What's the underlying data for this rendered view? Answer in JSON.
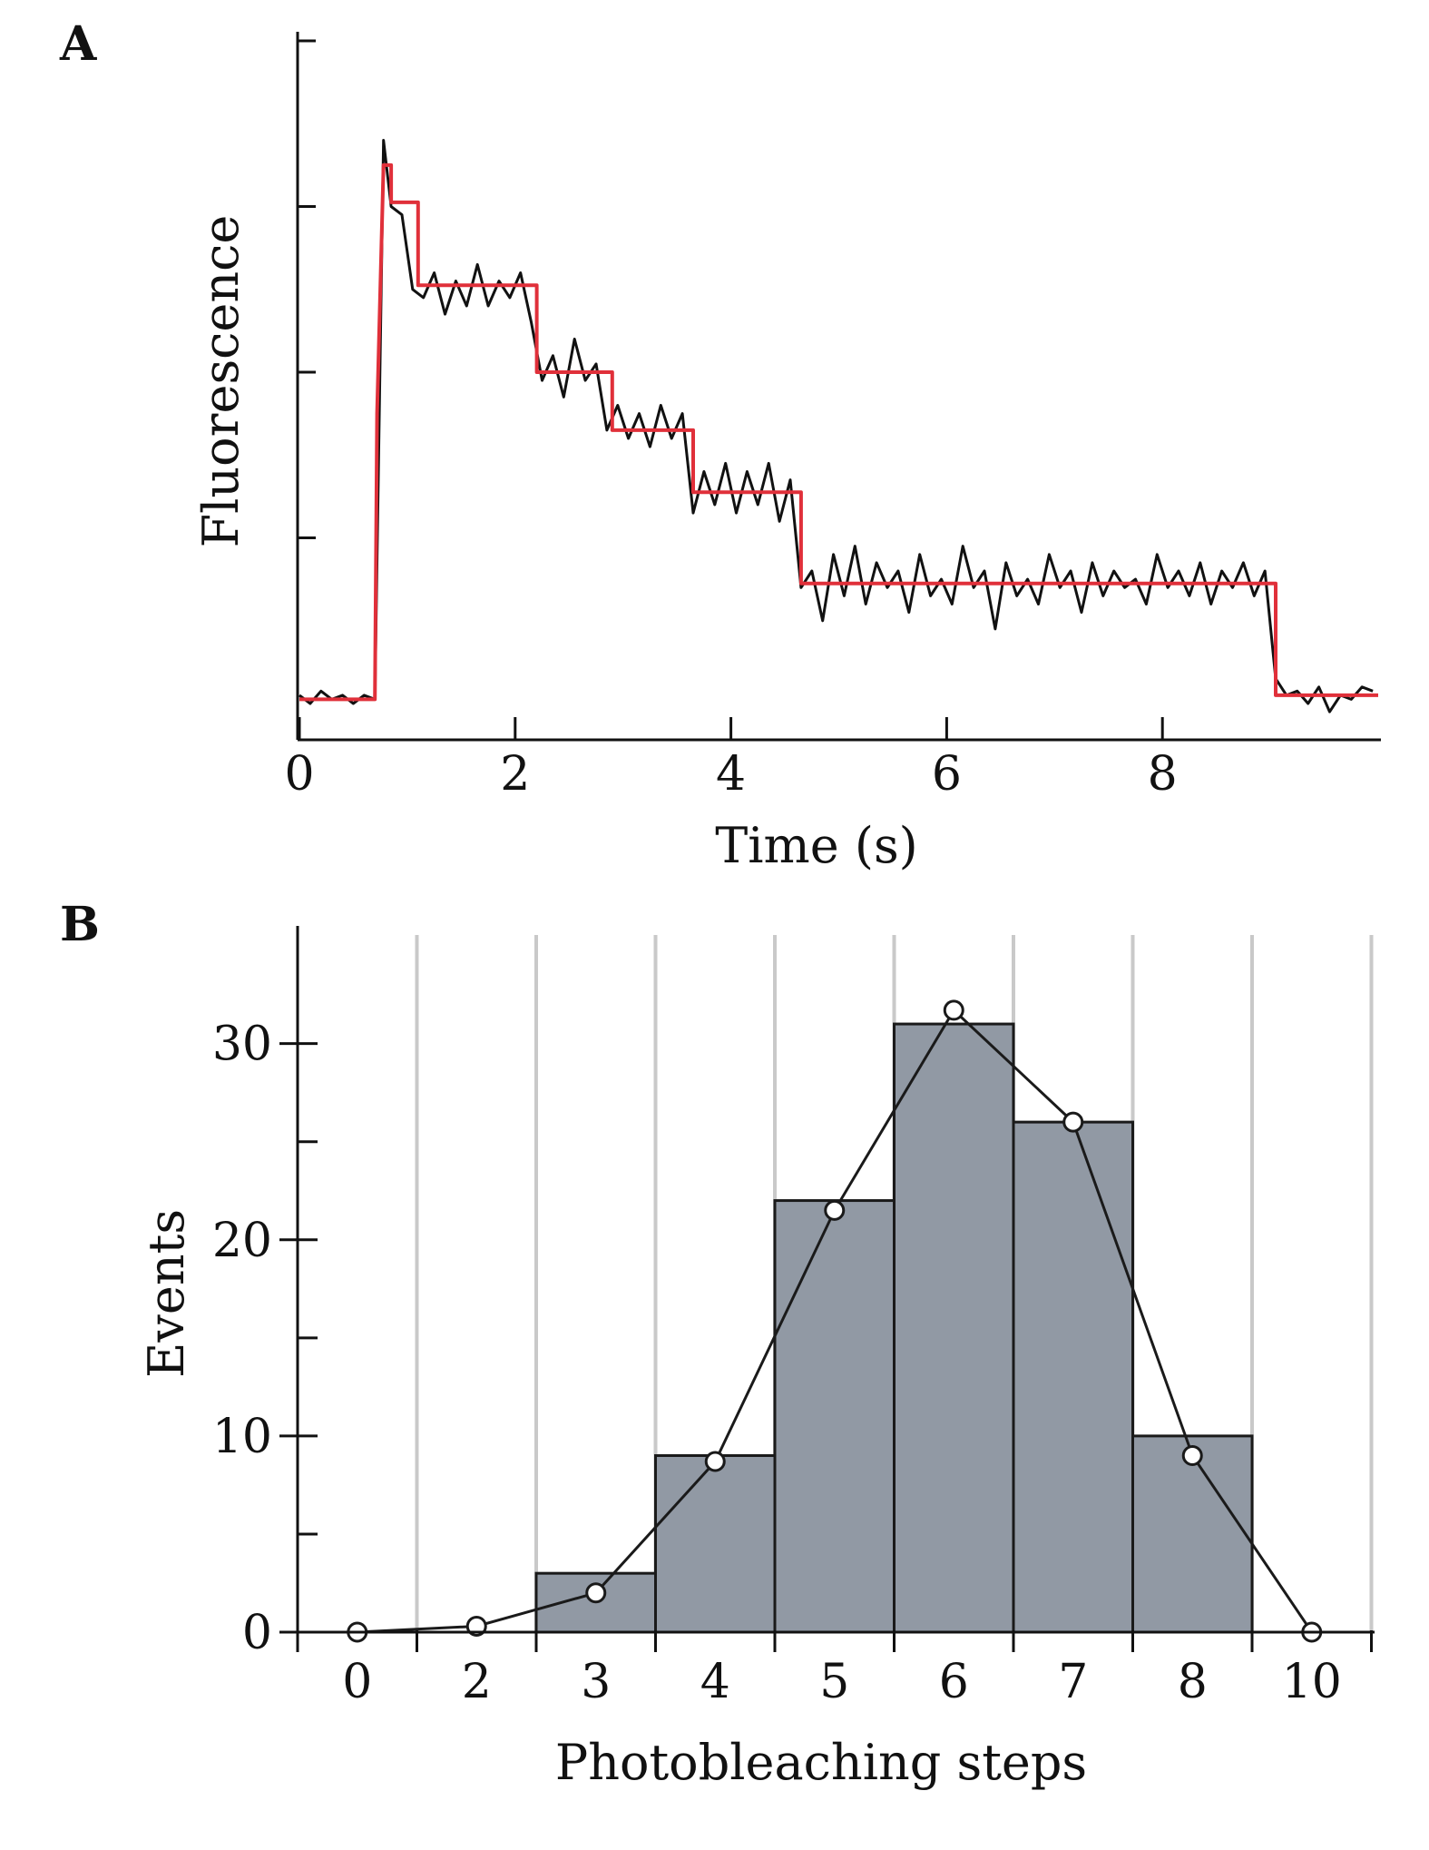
{
  "chart_data": [
    {
      "panel": "A",
      "type": "line",
      "xlabel": "Time (s)",
      "ylabel": "Fluorescence",
      "xlim": [
        0,
        10
      ],
      "ylim": [
        0,
        8
      ],
      "x_ticks": [
        "0",
        "2",
        "4",
        "6",
        "8"
      ],
      "y_tick_labels_shown": false,
      "colors": {
        "trace": "#111111",
        "fit": "#e0303a"
      },
      "series": [
        {
          "role": "trace",
          "x": [
            0.0,
            0.1,
            0.2,
            0.3,
            0.4,
            0.5,
            0.6,
            0.7,
            0.78,
            0.85,
            0.95,
            1.05,
            1.15,
            1.25,
            1.35,
            1.45,
            1.55,
            1.65,
            1.75,
            1.85,
            1.95,
            2.05,
            2.15,
            2.25,
            2.35,
            2.45,
            2.55,
            2.65,
            2.75,
            2.85,
            2.95,
            3.05,
            3.15,
            3.25,
            3.35,
            3.45,
            3.55,
            3.65,
            3.75,
            3.85,
            3.95,
            4.05,
            4.15,
            4.25,
            4.35,
            4.45,
            4.55,
            4.65,
            4.75,
            4.85,
            4.95,
            5.05,
            5.15,
            5.25,
            5.35,
            5.45,
            5.55,
            5.65,
            5.75,
            5.85,
            5.95,
            6.05,
            6.15,
            6.25,
            6.35,
            6.45,
            6.55,
            6.65,
            6.75,
            6.85,
            6.95,
            7.05,
            7.15,
            7.25,
            7.35,
            7.45,
            7.55,
            7.65,
            7.75,
            7.85,
            7.95,
            8.05,
            8.15,
            8.25,
            8.35,
            8.45,
            8.55,
            8.65,
            8.75,
            8.85,
            8.95,
            9.05,
            9.15,
            9.25,
            9.35,
            9.45,
            9.55,
            9.65,
            9.75,
            9.85,
            9.95
          ],
          "y": [
            0.1,
            0.0,
            0.15,
            0.05,
            0.1,
            0.0,
            0.1,
            0.05,
            6.8,
            6.0,
            5.9,
            5.0,
            4.9,
            5.2,
            4.7,
            5.1,
            4.8,
            5.3,
            4.8,
            5.1,
            4.9,
            5.2,
            4.6,
            3.9,
            4.2,
            3.7,
            4.4,
            3.9,
            4.1,
            3.3,
            3.6,
            3.2,
            3.5,
            3.1,
            3.6,
            3.2,
            3.5,
            2.3,
            2.8,
            2.4,
            2.9,
            2.3,
            2.8,
            2.4,
            2.9,
            2.2,
            2.7,
            1.4,
            1.6,
            1.0,
            1.8,
            1.3,
            1.9,
            1.2,
            1.7,
            1.4,
            1.6,
            1.1,
            1.8,
            1.3,
            1.5,
            1.2,
            1.9,
            1.4,
            1.6,
            0.9,
            1.7,
            1.3,
            1.5,
            1.2,
            1.8,
            1.4,
            1.6,
            1.1,
            1.7,
            1.3,
            1.6,
            1.4,
            1.5,
            1.2,
            1.8,
            1.4,
            1.6,
            1.3,
            1.7,
            1.2,
            1.6,
            1.4,
            1.7,
            1.3,
            1.6,
            0.3,
            0.1,
            0.15,
            0.0,
            0.2,
            -0.1,
            0.1,
            0.05,
            0.2,
            0.15
          ]
        },
        {
          "role": "fit",
          "x": [
            0.0,
            0.7,
            0.72,
            0.78,
            0.8,
            0.85,
            0.85,
            1.1,
            1.1,
            2.2,
            2.2,
            2.9,
            2.9,
            3.65,
            3.65,
            4.65,
            4.65,
            9.05,
            9.05,
            10.0
          ],
          "y": [
            0.05,
            0.05,
            3.5,
            6.5,
            6.5,
            6.5,
            6.05,
            6.05,
            5.05,
            5.05,
            4.0,
            4.0,
            3.3,
            3.3,
            2.55,
            2.55,
            1.45,
            1.45,
            0.1,
            0.1
          ]
        }
      ]
    },
    {
      "panel": "B",
      "type": "bar",
      "xlabel": "Photobleaching steps",
      "ylabel": "Events",
      "categories": [
        "0",
        "2",
        "3",
        "4",
        "5",
        "6",
        "7",
        "8",
        "10"
      ],
      "values": [
        0,
        0,
        3,
        9,
        22,
        31,
        26,
        10,
        0
      ],
      "ylim": [
        0,
        36
      ],
      "y_ticks": [
        "0",
        "10",
        "20",
        "30"
      ],
      "series": [
        {
          "role": "histogram",
          "values": [
            0,
            0,
            3,
            9,
            22,
            31,
            26,
            10,
            0
          ]
        },
        {
          "role": "fit",
          "values": [
            0.0,
            0.3,
            2.0,
            8.7,
            21.5,
            31.7,
            26.0,
            9.0,
            0.0
          ]
        }
      ],
      "colors": {
        "bar_fill": "#9199a4",
        "bar_edge": "#1a1a1a",
        "grid": "#c9c9c9",
        "marker_fill": "#ffffff"
      },
      "grid": "vertical"
    }
  ]
}
